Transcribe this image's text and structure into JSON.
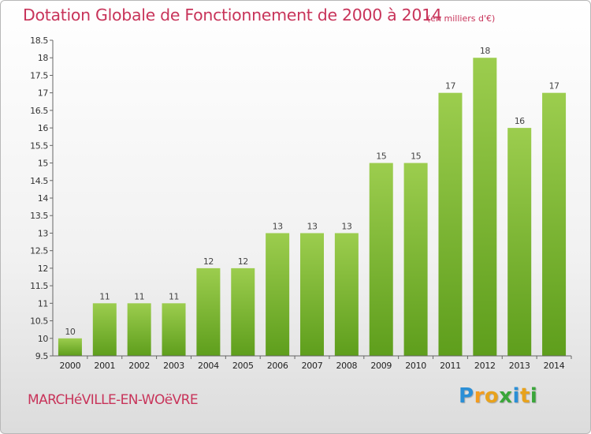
{
  "header": {
    "title": "Dotation Globale de Fonctionnement de 2000 à 2014",
    "subtitle": "(en milliers d'€)"
  },
  "footer": {
    "town": "MARCHéVILLE-EN-WOëVRE",
    "logo_letters": [
      "P",
      "r",
      "o",
      "x",
      "i",
      "t",
      "i"
    ],
    "logo_colors": [
      "#2b8fd6",
      "#f39c1f",
      "#e8a21c",
      "#3aa63a",
      "#2b8fd6",
      "#e8a21c",
      "#3aa63a"
    ]
  },
  "chart_data": {
    "type": "bar",
    "categories": [
      "2000",
      "2001",
      "2002",
      "2003",
      "2004",
      "2005",
      "2006",
      "2007",
      "2008",
      "2009",
      "2010",
      "2011",
      "2012",
      "2013",
      "2014"
    ],
    "values": [
      10,
      11,
      11,
      11,
      12,
      12,
      13,
      13,
      13,
      15,
      15,
      17,
      18,
      16,
      17
    ],
    "data_labels": [
      "10",
      "11",
      "11",
      "11",
      "12",
      "12",
      "13",
      "13",
      "13",
      "15",
      "15",
      "17",
      "18",
      "16",
      "17"
    ],
    "ylim": [
      9.5,
      18.5
    ],
    "yticks": [
      9.5,
      10,
      10.5,
      11,
      11.5,
      12,
      12.5,
      13,
      13.5,
      14,
      14.5,
      15,
      15.5,
      16,
      16.5,
      17,
      17.5,
      18,
      18.5
    ],
    "ytick_labels": [
      "9.5",
      "10",
      "10.5",
      "11",
      "11.5",
      "12",
      "12.5",
      "13",
      "13.5",
      "14",
      "14.5",
      "15",
      "15.5",
      "16",
      "16.5",
      "17",
      "17.5",
      "18",
      "18.5"
    ],
    "grid": false,
    "bar_color_top": "#9ccd4e",
    "bar_color_bottom": "#5e9e1c"
  }
}
